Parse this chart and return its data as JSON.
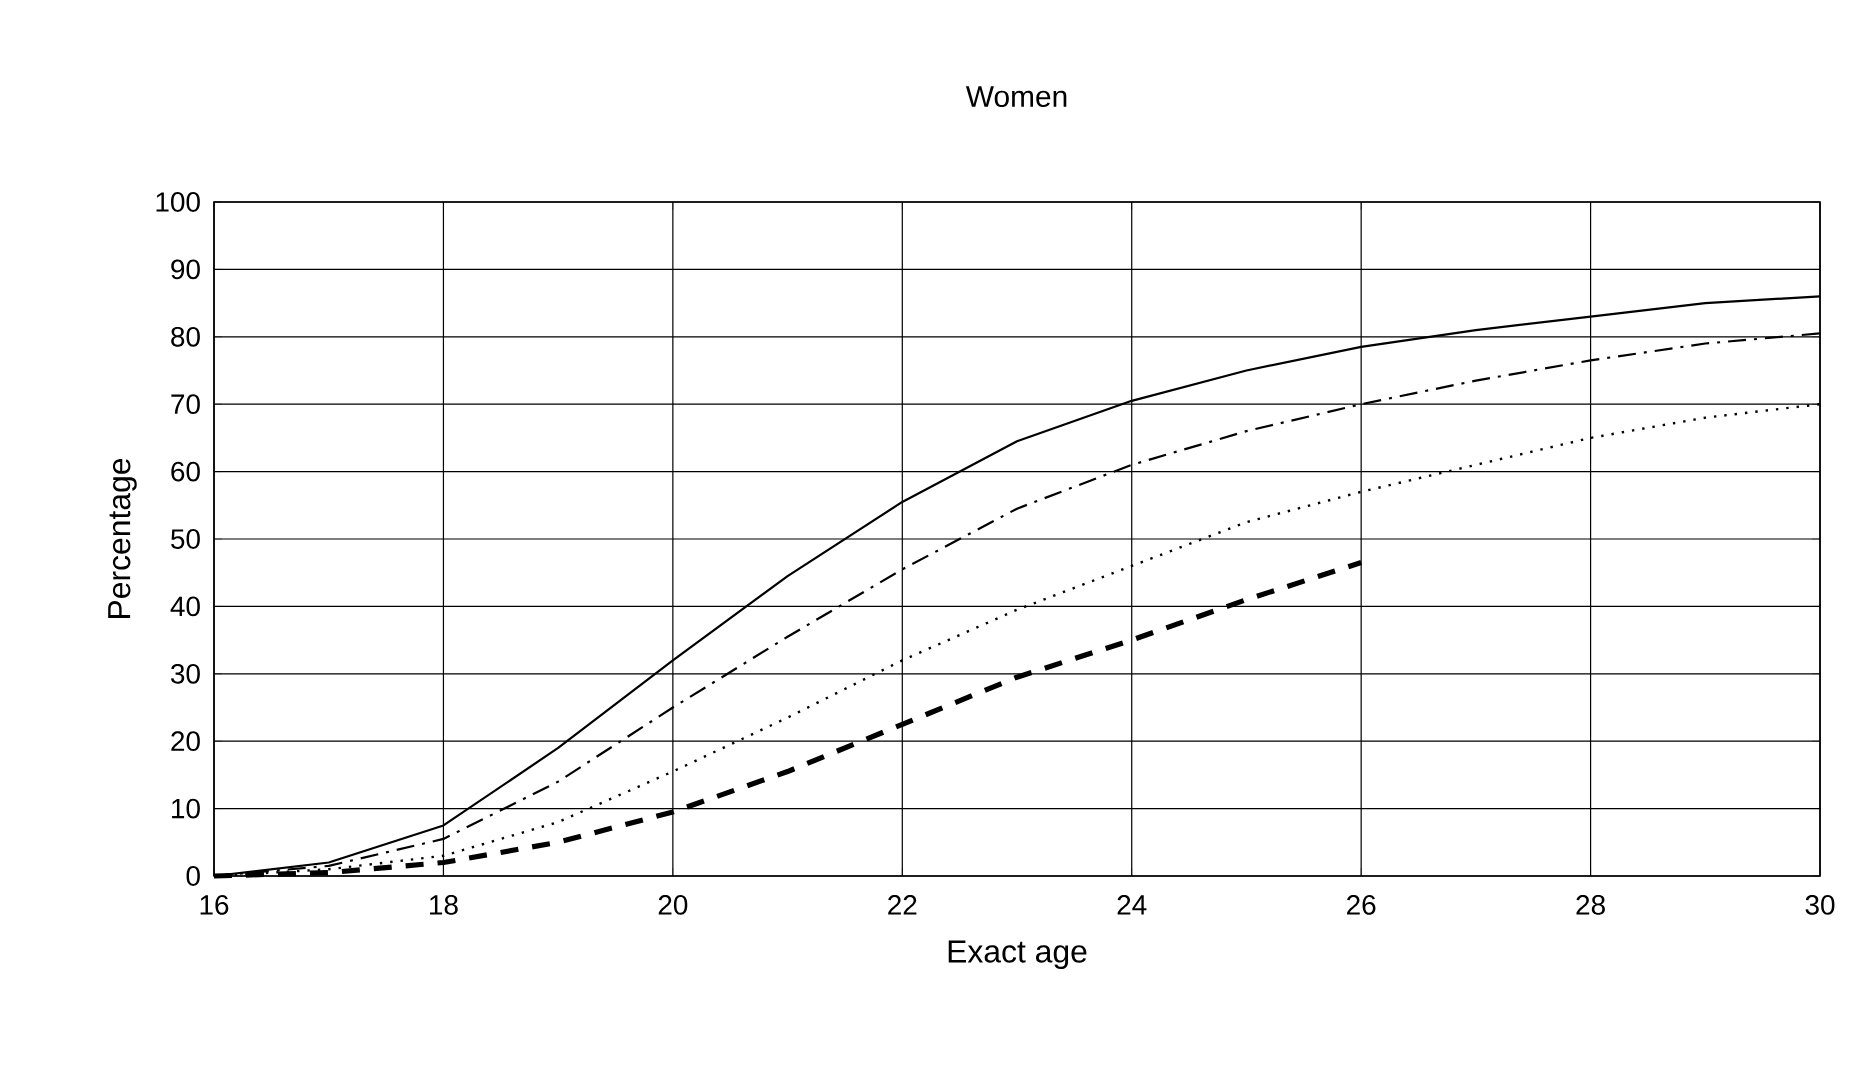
{
  "chart_data": {
    "type": "line",
    "title": "Women",
    "xlabel": "Exact age",
    "ylabel": "Percentage",
    "x": [
      16,
      17,
      18,
      19,
      20,
      21,
      22,
      23,
      24,
      25,
      26,
      27,
      28,
      29,
      30
    ],
    "series": [
      {
        "color": "#000000",
        "line_style": "solid",
        "values": [
          0,
          2,
          7.5,
          19,
          32,
          44.5,
          55.5,
          64.5,
          70.5,
          75,
          78.5,
          81,
          83,
          85,
          86
        ]
      },
      {
        "color": "#000000",
        "line_style": "dashdot",
        "values": [
          0,
          1.5,
          5.5,
          14,
          25,
          35.5,
          45.5,
          54.5,
          61,
          66,
          70,
          73.5,
          76.5,
          79,
          80.5
        ]
      },
      {
        "color": "#000000",
        "line_style": "dotted",
        "values": [
          0,
          1,
          3,
          8,
          15.5,
          23.5,
          32,
          39.5,
          46,
          52.5,
          57,
          61,
          65,
          68,
          70
        ]
      },
      {
        "color": "#000000",
        "line_style": "dashed",
        "values": [
          0,
          0.5,
          2,
          5,
          9.5,
          15.5,
          22.5,
          29.5,
          35,
          41,
          46.5,
          null,
          null,
          null,
          null
        ]
      }
    ],
    "xlim": [
      16,
      30
    ],
    "xticks": [
      16,
      18,
      20,
      22,
      24,
      26,
      28,
      30
    ],
    "ylim": [
      0,
      100
    ],
    "yticks": [
      0,
      10,
      20,
      30,
      40,
      50,
      60,
      70,
      80,
      90,
      100
    ],
    "grid": true,
    "marker": "none"
  }
}
